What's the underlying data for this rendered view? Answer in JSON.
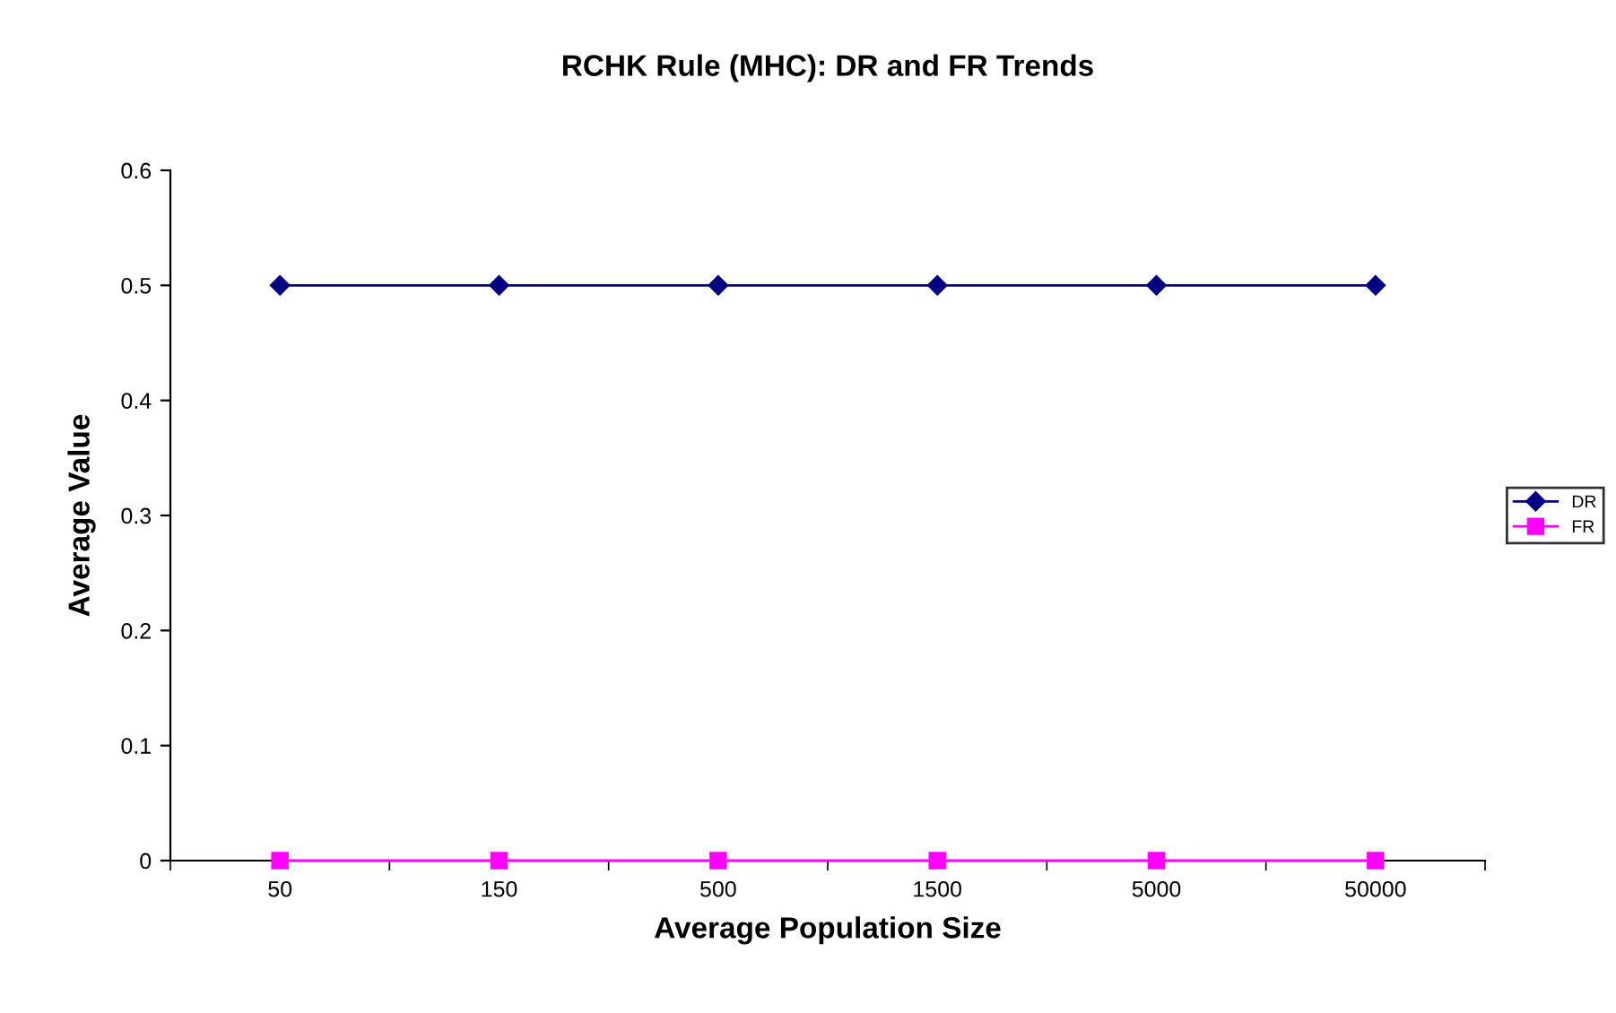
{
  "chart_data": {
    "type": "line",
    "title": "RCHK Rule (MHC): DR and FR Trends",
    "xlabel": "Average Population Size",
    "ylabel": "Average Value",
    "categories": [
      "50",
      "150",
      "500",
      "1500",
      "5000",
      "50000"
    ],
    "series": [
      {
        "name": "DR",
        "color": "#000080",
        "marker": "diamond",
        "values": [
          0.5,
          0.5,
          0.5,
          0.5,
          0.5,
          0.5
        ]
      },
      {
        "name": "FR",
        "color": "#ff00ff",
        "marker": "square",
        "values": [
          0,
          0,
          0,
          0,
          0,
          0
        ]
      }
    ],
    "ylim": [
      0,
      0.6
    ],
    "yticks": [
      0,
      0.1,
      0.2,
      0.3,
      0.4,
      0.5,
      0.6
    ],
    "grid": false,
    "legend": "right",
    "line_style": "solid"
  }
}
